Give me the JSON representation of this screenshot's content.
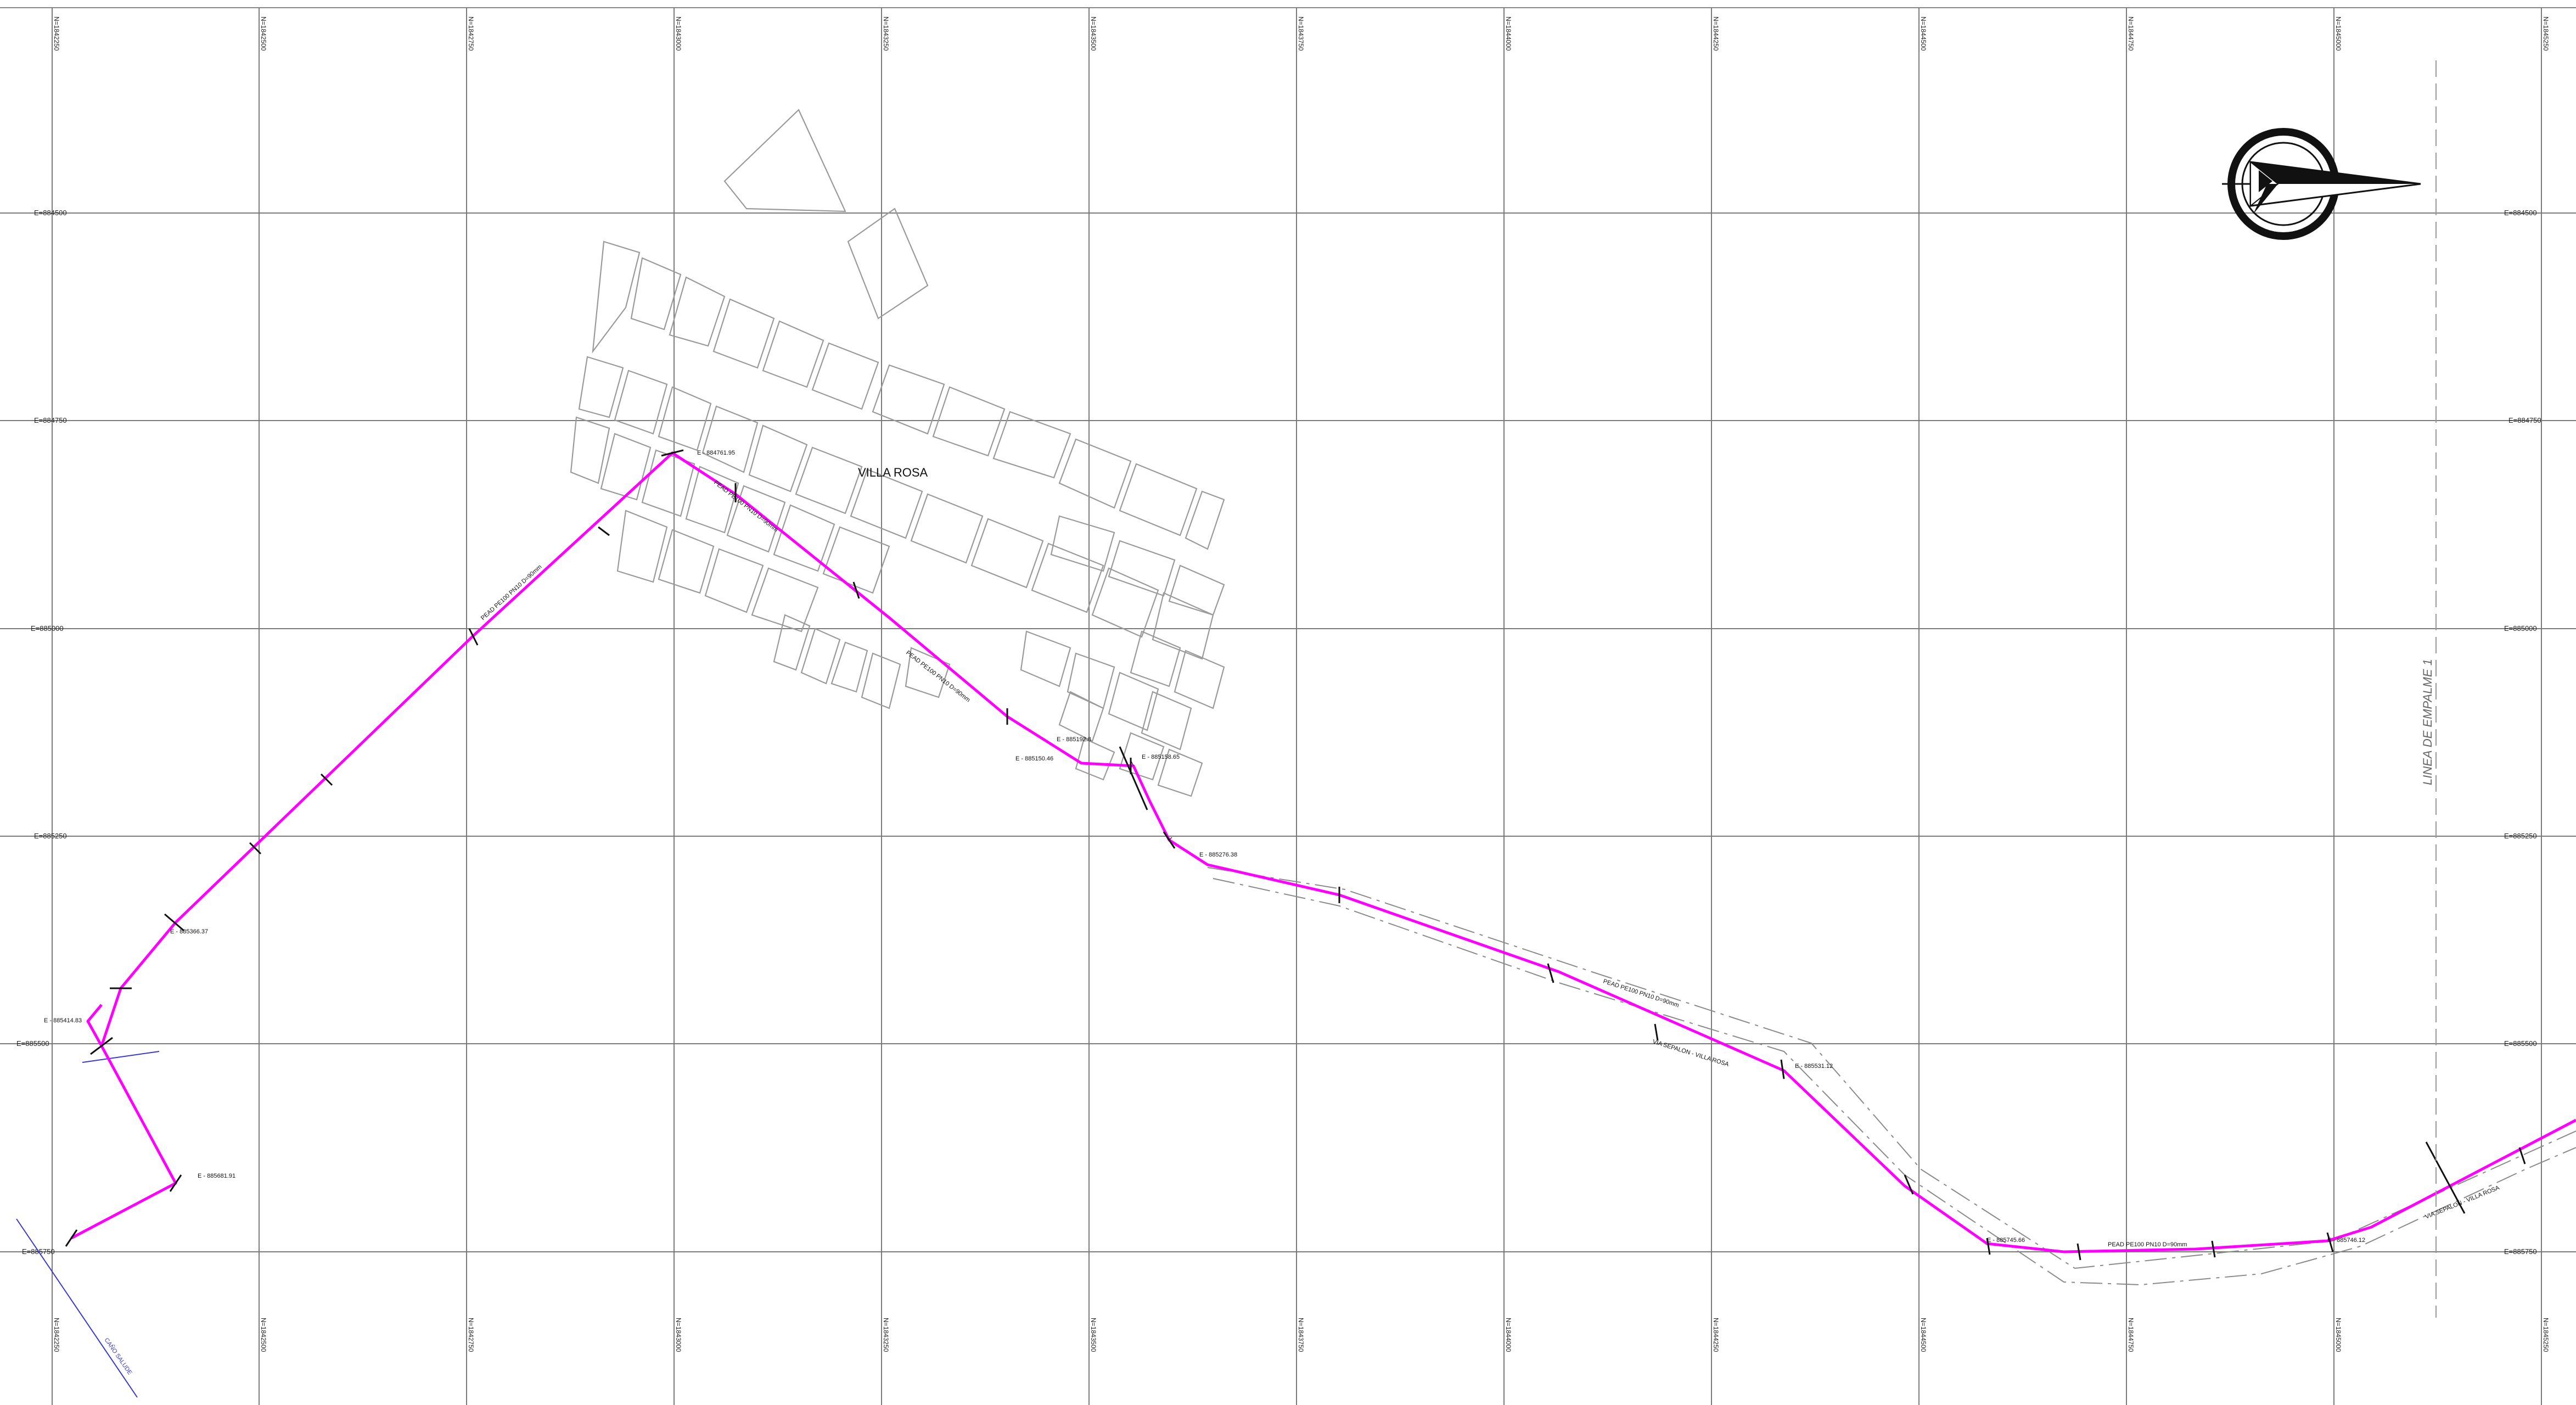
{
  "map": {
    "place_label": "VILLA ROSA",
    "empalme_label": "LINEA DE EMPALME 1",
    "road_label": "VIA SEPALON - VILLA ROSA",
    "route_colour": "#ff00ff",
    "easting_labels": [
      "E=884500",
      "E=884750",
      "E=885000",
      "E=885250",
      "E=885500",
      "E=885750"
    ],
    "northing_labels": [
      "N=1842250",
      "N=1842500",
      "N=1842750",
      "N=1843000",
      "N=1843250",
      "N=1843500",
      "N=1843750",
      "N=1844000",
      "N=1844250",
      "N=1844500",
      "N=1844750",
      "N=1845000",
      "N=1845250"
    ],
    "coordinate_callouts": [
      "E - 884761.95",
      "E - 885150.46",
      "E - 885192.8",
      "E - 885276.38",
      "E - 885414.83",
      "E - 885531.12",
      "E - 885745.66",
      "E - 885746.12",
      "E - 885681.91",
      "E - 885366.37",
      "E - 885158.65"
    ],
    "segment_notes": [
      "PEAD PE100 PN10 D=90mm",
      "PEAD PE100 PN10 D=90mm",
      "PEAD PE100 PN10 D=90mm",
      "PEAD PE100 PN10 D=90mm",
      "PEAD PE100 PN10 D=90mm"
    ]
  }
}
